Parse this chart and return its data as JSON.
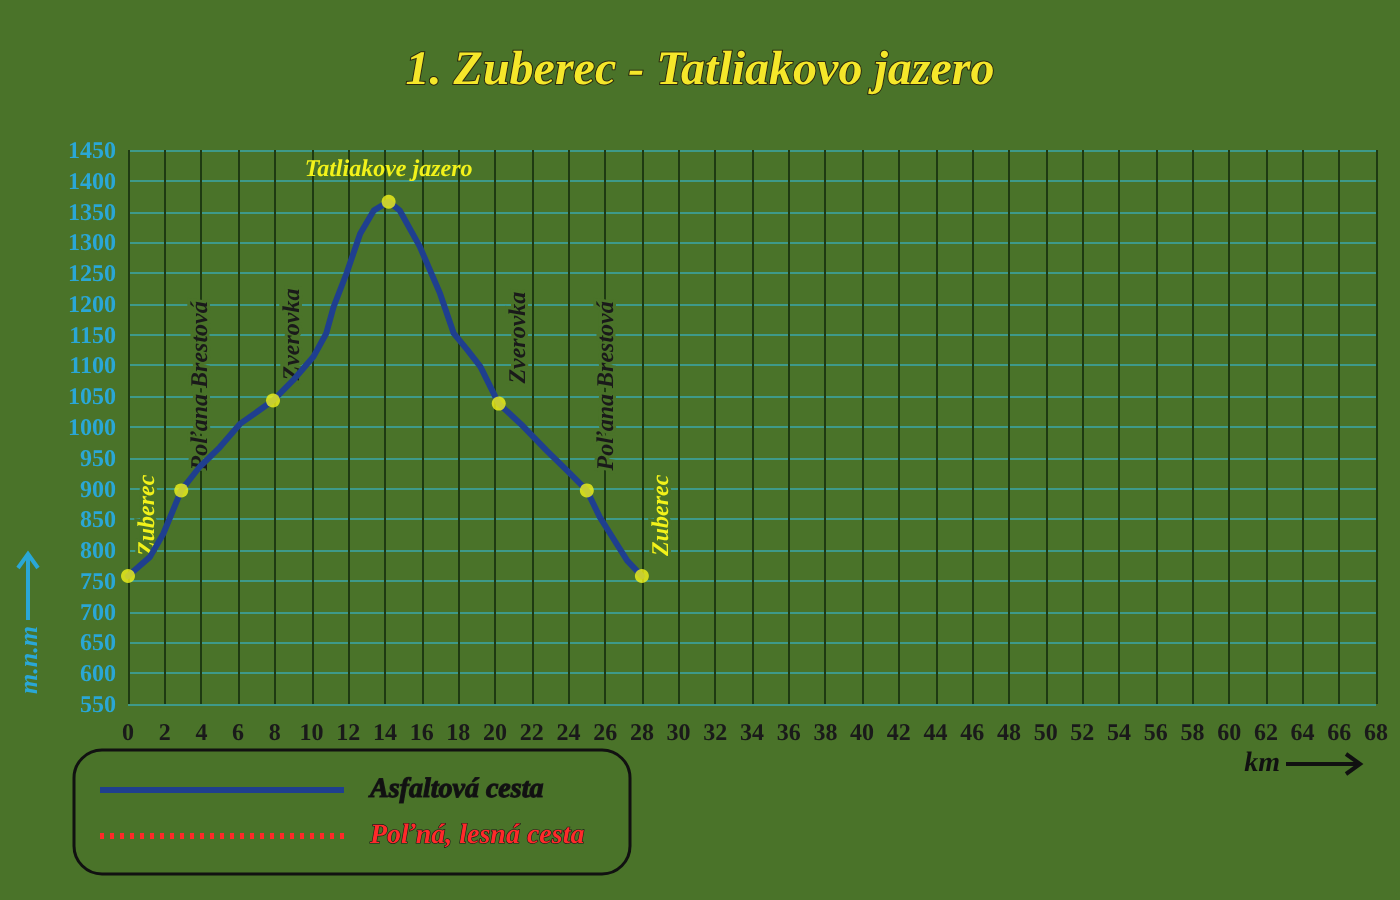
{
  "chart_data": {
    "type": "line",
    "title": "1. Zuberec - Tatliakovo jazero",
    "xlabel": "km",
    "ylabel": "m.n.m",
    "xlim": [
      0,
      68
    ],
    "xticks": [
      0,
      2,
      4,
      6,
      8,
      10,
      12,
      14,
      16,
      18,
      20,
      22,
      24,
      26,
      28,
      30,
      32,
      34,
      36,
      38,
      40,
      42,
      44,
      46,
      48,
      50,
      52,
      54,
      56,
      58,
      60,
      62,
      64,
      66,
      68
    ],
    "ylim": [
      550,
      1450
    ],
    "yticks": [
      550,
      600,
      650,
      700,
      750,
      800,
      850,
      900,
      950,
      1000,
      1050,
      1100,
      1150,
      1200,
      1250,
      1300,
      1350,
      1400,
      1450
    ],
    "grid": true,
    "legend": "bottom left",
    "marker": "none",
    "series": [
      {
        "name": "Asfaltová cesta",
        "color": "#1f3f8f",
        "line_style": "solid",
        "x": [
          0,
          1.2,
          1.93,
          2.9,
          3.9,
          5.0,
          6.1,
          7.9,
          9.0,
          10.1,
          10.8,
          11.2,
          11.9,
          12.65,
          13.4,
          14.2,
          14.8,
          15.9,
          17.0,
          17.75,
          18.5,
          19.2,
          20.2,
          21.4,
          22.8,
          23.9,
          25.0,
          25.7,
          26.5,
          27.2,
          28
        ],
        "values": [
          758,
          789,
          827,
          897,
          935,
          967,
          1005,
          1043,
          1076,
          1114,
          1152,
          1195,
          1249,
          1314,
          1352,
          1366,
          1352,
          1293,
          1217,
          1152,
          1125,
          1098,
          1038,
          1005,
          962,
          930,
          897,
          854,
          816,
          783,
          758
        ]
      },
      {
        "name": "Poľná, lesná cesta",
        "color": "#ff2a2a",
        "line_style": "dotted"
      }
    ],
    "annotations": [
      {
        "text": "Zuberec",
        "x": 0,
        "y": 758
      },
      {
        "text": "Poľana Brestová",
        "x": 2.9,
        "y": 897
      },
      {
        "text": "Zverovka",
        "x": 7.9,
        "y": 1043
      },
      {
        "text": "Tatliakove jazero",
        "x": 14.2,
        "y": 1366
      },
      {
        "text": "Zverovka",
        "x": 20.2,
        "y": 1038
      },
      {
        "text": "Poľana Brestová",
        "x": 25.0,
        "y": 897
      },
      {
        "text": "Zuberec",
        "x": 28,
        "y": 758
      }
    ]
  }
}
